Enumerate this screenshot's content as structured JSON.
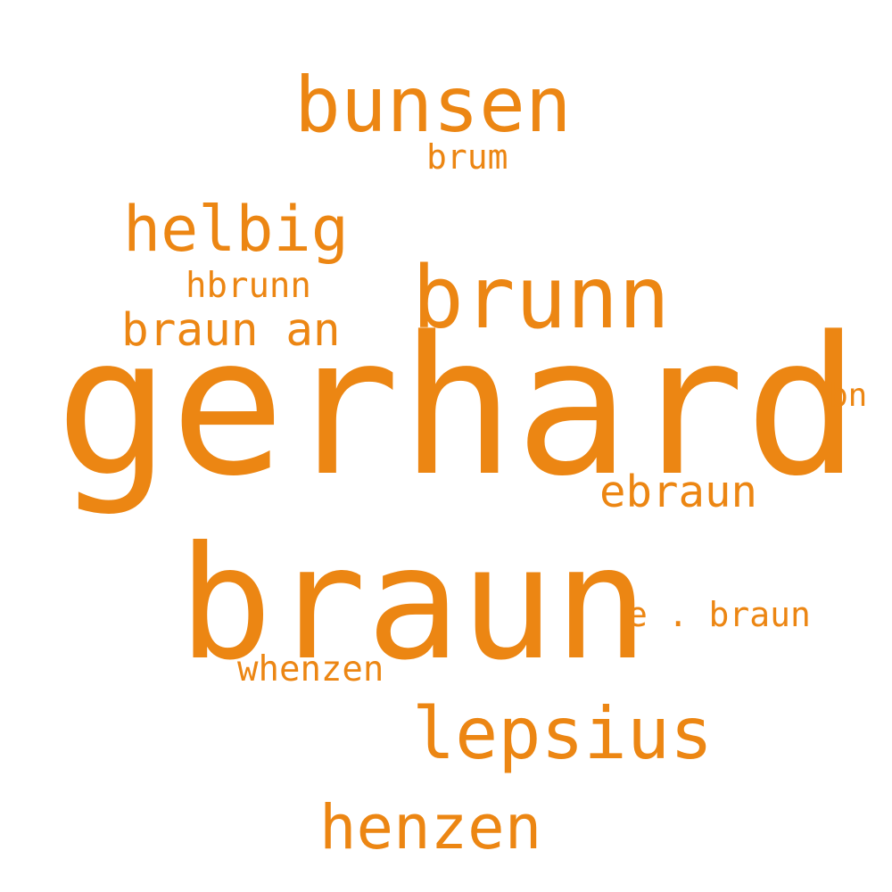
{
  "accent_color": "#ec8613",
  "words": {
    "gerhard": "gerhard",
    "braun": "braun",
    "bunsen": "bunsen",
    "brunn": "brunn",
    "helbig": "helbig",
    "lepsius": "lepsius",
    "henzen": "henzen",
    "ebraun": "ebraun",
    "braun_an": "braun an",
    "hbrunn": "hbrunn",
    "brum": "brum",
    "e_braun": "e . braun",
    "whenzen": "whenzen",
    "bn": "bn"
  }
}
